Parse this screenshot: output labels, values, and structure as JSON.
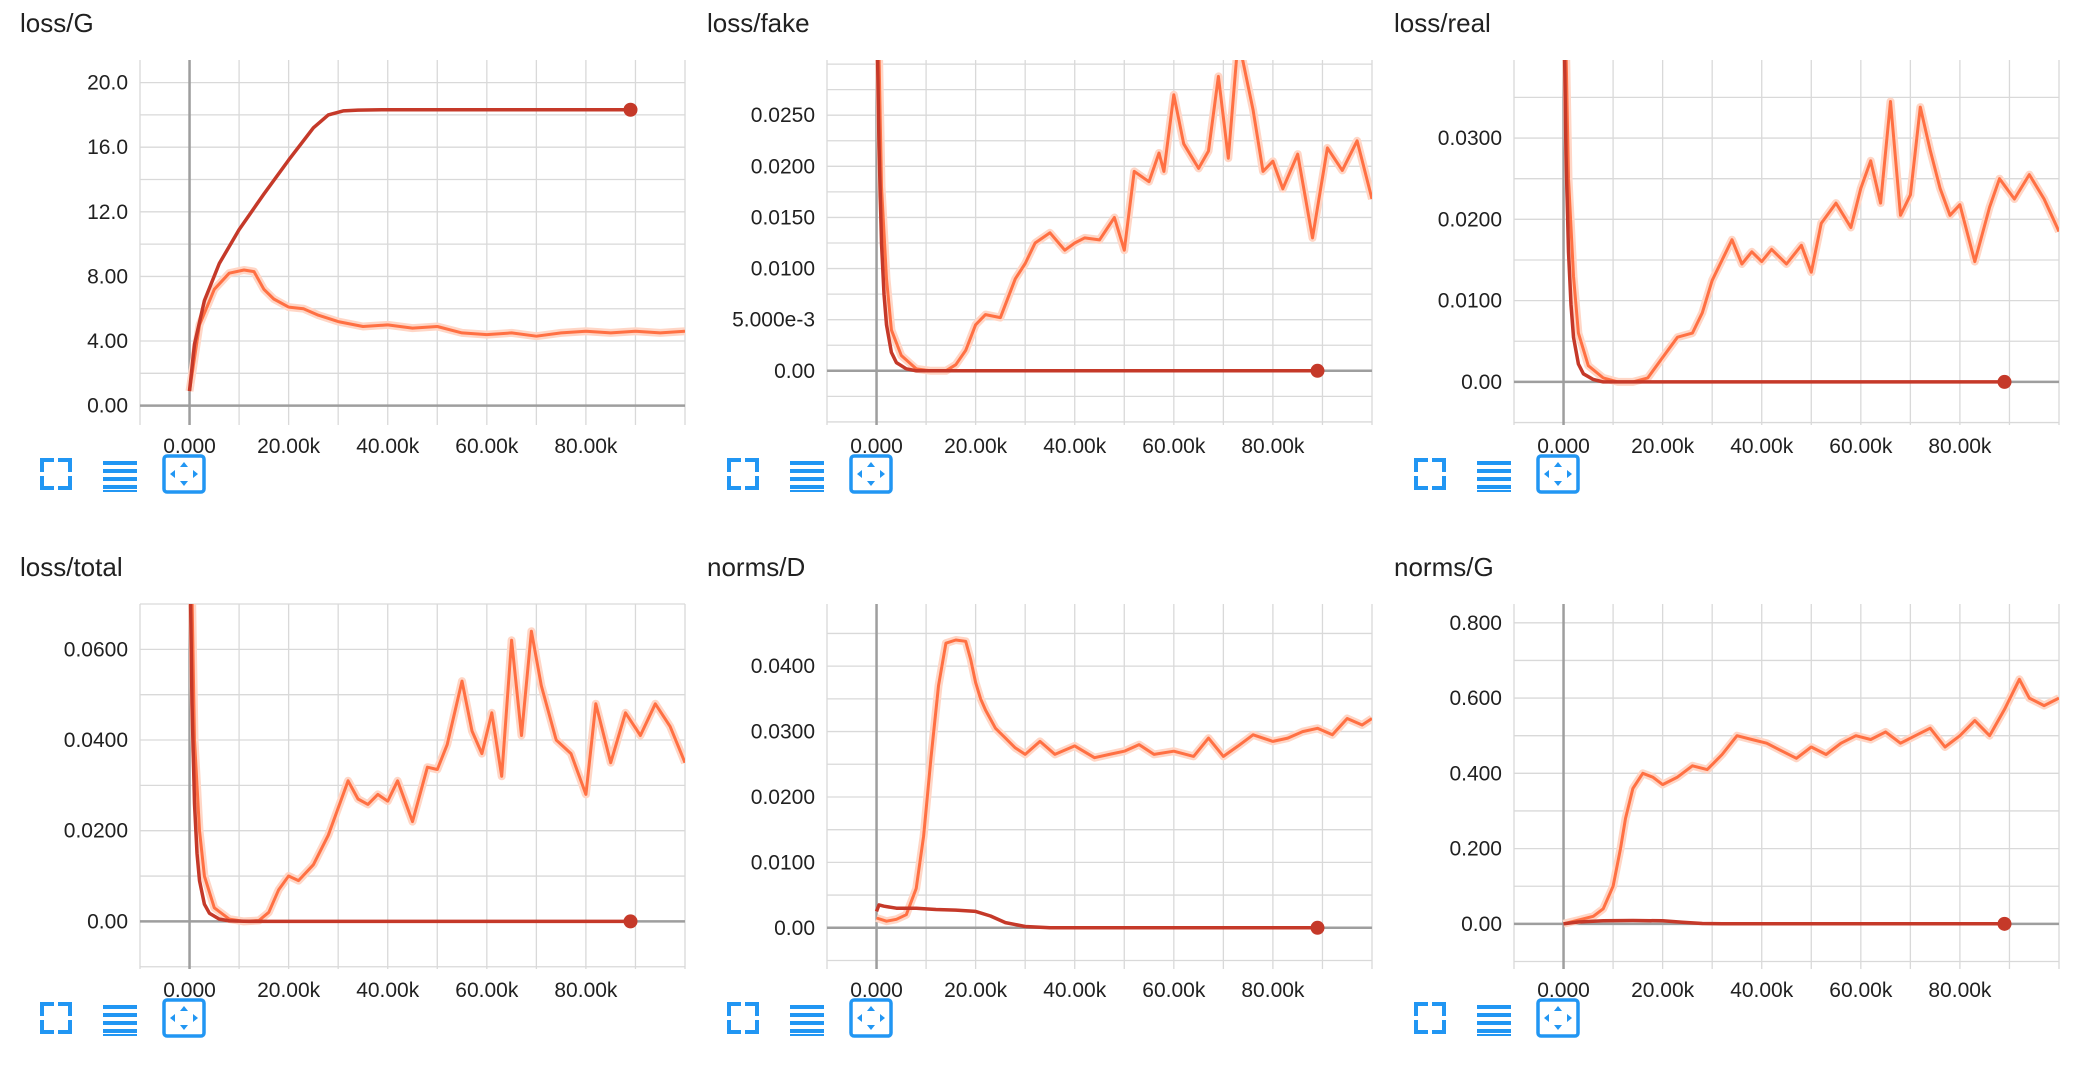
{
  "colors": {
    "raw": "#ff7043",
    "raw_faint": "#ffd6c6",
    "trend": "#c53929",
    "grid": "#d9d9d9",
    "axis": "#9e9e9e",
    "tick_text": "#212121",
    "button": "#2196f3"
  },
  "toolbar_buttons": [
    {
      "name": "fit-screen-icon",
      "icon": "expand-corners"
    },
    {
      "name": "list-icon",
      "icon": "horizontal-lines"
    },
    {
      "name": "fit-domain-icon",
      "icon": "arrows-in-box"
    }
  ],
  "chart_data": [
    {
      "title": "loss/G",
      "type": "line",
      "xlim": [
        -10000,
        100000
      ],
      "ylim": [
        -1.2,
        21.4
      ],
      "xticks": [
        0,
        20000,
        40000,
        60000,
        80000
      ],
      "xtick_labels": [
        "0.000",
        "20.00k",
        "40.00k",
        "60.00k",
        "80.00k"
      ],
      "yticks": [
        0,
        4,
        8,
        12,
        16,
        20
      ],
      "ytick_labels": [
        "0.00",
        "4.00",
        "8.00",
        "12.0",
        "16.0",
        "20.0"
      ],
      "grid": true,
      "series": [
        {
          "role": "raw",
          "x": [
            0,
            2000,
            5000,
            8000,
            11000,
            13000,
            15000,
            17000,
            20000,
            23000,
            26000,
            30000,
            35000,
            40000,
            45000,
            50000,
            55000,
            60000,
            65000,
            70000,
            75000,
            80000,
            85000,
            90000,
            95000,
            100000
          ],
          "y": [
            0.9,
            5.0,
            7.2,
            8.2,
            8.4,
            8.3,
            7.2,
            6.6,
            6.1,
            6.0,
            5.6,
            5.2,
            4.9,
            5.0,
            4.8,
            4.9,
            4.5,
            4.4,
            4.5,
            4.3,
            4.5,
            4.6,
            4.5,
            4.6,
            4.5,
            4.6
          ]
        },
        {
          "role": "trend",
          "end_marker": true,
          "x": [
            0,
            1000,
            3000,
            6000,
            10000,
            15000,
            20000,
            25000,
            28000,
            31000,
            34000,
            40000,
            60000,
            80000,
            89000
          ],
          "y": [
            0.9,
            3.8,
            6.5,
            8.8,
            10.9,
            13.1,
            15.2,
            17.2,
            18.0,
            18.25,
            18.3,
            18.32,
            18.32,
            18.32,
            18.32
          ]
        }
      ]
    },
    {
      "title": "loss/fake",
      "type": "line",
      "xlim": [
        -10000,
        100000
      ],
      "ylim": [
        -0.0053,
        0.0304
      ],
      "xticks": [
        0,
        20000,
        40000,
        60000,
        80000
      ],
      "xtick_labels": [
        "0.000",
        "20.00k",
        "40.00k",
        "60.00k",
        "80.00k"
      ],
      "yticks": [
        0,
        0.005,
        0.01,
        0.015,
        0.02,
        0.025
      ],
      "ytick_labels": [
        "0.00",
        "5.000e-3",
        "0.0100",
        "0.0150",
        "0.0200",
        "0.0250"
      ],
      "grid": true,
      "series": [
        {
          "role": "raw",
          "x": [
            500,
            1000,
            2000,
            3000,
            5000,
            8000,
            11000,
            14000,
            16000,
            18000,
            20000,
            22000,
            25000,
            28000,
            30000,
            32000,
            35000,
            38000,
            40000,
            42000,
            45000,
            48000,
            50000,
            52000,
            55000,
            57000,
            58000,
            60000,
            62000,
            65000,
            67000,
            69000,
            71000,
            73000,
            76000,
            78000,
            80000,
            82000,
            85000,
            88000,
            91000,
            94000,
            97000,
            100000
          ],
          "y": [
            0.031,
            0.018,
            0.009,
            0.004,
            0.0015,
            0.0002,
            0.0,
            0.0,
            0.0006,
            0.002,
            0.0045,
            0.0055,
            0.0052,
            0.009,
            0.0105,
            0.0125,
            0.0135,
            0.0118,
            0.0125,
            0.013,
            0.0128,
            0.015,
            0.0118,
            0.0195,
            0.0185,
            0.0213,
            0.0195,
            0.027,
            0.0222,
            0.0198,
            0.0215,
            0.0288,
            0.0208,
            0.0325,
            0.0255,
            0.0195,
            0.0205,
            0.0178,
            0.0212,
            0.013,
            0.0218,
            0.0196,
            0.0225,
            0.0168
          ]
        },
        {
          "role": "trend",
          "end_marker": true,
          "x": [
            200,
            500,
            1000,
            1500,
            2000,
            3000,
            4000,
            6000,
            8000,
            12000,
            20000,
            50000,
            89000
          ],
          "y": [
            0.031,
            0.022,
            0.0125,
            0.0075,
            0.0045,
            0.0018,
            0.0008,
            0.0002,
            0.0,
            0.0,
            0.0,
            0.0,
            0.0
          ]
        }
      ]
    },
    {
      "title": "loss/real",
      "type": "line",
      "xlim": [
        -10000,
        100000
      ],
      "ylim": [
        -0.0053,
        0.0396
      ],
      "xticks": [
        0,
        20000,
        40000,
        60000,
        80000
      ],
      "xtick_labels": [
        "0.000",
        "20.00k",
        "40.00k",
        "60.00k",
        "80.00k"
      ],
      "yticks": [
        0,
        0.01,
        0.02,
        0.03
      ],
      "ytick_labels": [
        "0.00",
        "0.0100",
        "0.0200",
        "0.0300"
      ],
      "grid": true,
      "series": [
        {
          "role": "raw",
          "x": [
            500,
            1000,
            2000,
            3000,
            5000,
            8000,
            11000,
            14000,
            17000,
            20000,
            23000,
            26000,
            28000,
            30000,
            32000,
            34000,
            36000,
            38000,
            40000,
            42000,
            45000,
            48000,
            50000,
            52000,
            55000,
            58000,
            60000,
            62000,
            64000,
            66000,
            68000,
            70000,
            72000,
            74000,
            76000,
            78000,
            80000,
            83000,
            86000,
            88000,
            91000,
            94000,
            97000,
            100000
          ],
          "y": [
            0.041,
            0.025,
            0.013,
            0.006,
            0.002,
            0.0005,
            0.0,
            0.0,
            0.0005,
            0.003,
            0.0055,
            0.006,
            0.0085,
            0.0125,
            0.015,
            0.0175,
            0.0145,
            0.016,
            0.0148,
            0.0163,
            0.0145,
            0.0168,
            0.0135,
            0.0195,
            0.022,
            0.019,
            0.0238,
            0.0272,
            0.022,
            0.0345,
            0.0205,
            0.023,
            0.0338,
            0.0285,
            0.0238,
            0.0205,
            0.0218,
            0.0148,
            0.0215,
            0.025,
            0.0225,
            0.0255,
            0.0225,
            0.0185
          ]
        },
        {
          "role": "trend",
          "end_marker": true,
          "x": [
            200,
            500,
            1000,
            1500,
            2000,
            3000,
            4000,
            6000,
            8000,
            12000,
            20000,
            50000,
            89000
          ],
          "y": [
            0.041,
            0.028,
            0.016,
            0.0095,
            0.0055,
            0.0022,
            0.001,
            0.0003,
            0.0,
            0.0,
            0.0,
            0.0,
            0.0
          ]
        }
      ]
    },
    {
      "title": "loss/total",
      "type": "line",
      "xlim": [
        -10000,
        100000
      ],
      "ylim": [
        -0.0105,
        0.07
      ],
      "xticks": [
        0,
        20000,
        40000,
        60000,
        80000
      ],
      "xtick_labels": [
        "0.000",
        "20.00k",
        "40.00k",
        "60.00k",
        "80.00k"
      ],
      "yticks": [
        0,
        0.02,
        0.04,
        0.06
      ],
      "ytick_labels": [
        "0.00",
        "0.0200",
        "0.0400",
        "0.0600"
      ],
      "grid": true,
      "series": [
        {
          "role": "raw",
          "x": [
            500,
            1000,
            2000,
            3000,
            5000,
            8000,
            11000,
            14000,
            16000,
            18000,
            20000,
            22000,
            25000,
            28000,
            30000,
            32000,
            34000,
            36000,
            38000,
            40000,
            42000,
            45000,
            48000,
            50000,
            52000,
            55000,
            57000,
            59000,
            61000,
            63000,
            65000,
            67000,
            69000,
            71000,
            74000,
            77000,
            80000,
            82000,
            85000,
            88000,
            91000,
            94000,
            97000,
            100000
          ],
          "y": [
            0.072,
            0.04,
            0.02,
            0.01,
            0.003,
            0.0005,
            0.0,
            0.0002,
            0.002,
            0.007,
            0.01,
            0.009,
            0.0125,
            0.019,
            0.025,
            0.031,
            0.027,
            0.0258,
            0.028,
            0.0265,
            0.031,
            0.022,
            0.034,
            0.0335,
            0.039,
            0.053,
            0.042,
            0.037,
            0.046,
            0.032,
            0.062,
            0.041,
            0.064,
            0.052,
            0.04,
            0.037,
            0.028,
            0.048,
            0.035,
            0.046,
            0.041,
            0.048,
            0.043,
            0.035
          ]
        },
        {
          "role": "trend",
          "end_marker": true,
          "x": [
            200,
            500,
            1000,
            1500,
            2000,
            3000,
            4000,
            6000,
            8000,
            12000,
            20000,
            50000,
            89000
          ],
          "y": [
            0.072,
            0.048,
            0.026,
            0.015,
            0.009,
            0.0038,
            0.0018,
            0.0005,
            0.0001,
            0.0,
            0.0,
            0.0,
            0.0
          ]
        }
      ]
    },
    {
      "title": "norms/D",
      "type": "line",
      "xlim": [
        -10000,
        100000
      ],
      "ylim": [
        -0.0063,
        0.0495
      ],
      "xticks": [
        0,
        20000,
        40000,
        60000,
        80000
      ],
      "xtick_labels": [
        "0.000",
        "20.00k",
        "40.00k",
        "60.00k",
        "80.00k"
      ],
      "yticks": [
        0,
        0.01,
        0.02,
        0.03,
        0.04
      ],
      "ytick_labels": [
        "0.00",
        "0.0100",
        "0.0200",
        "0.0300",
        "0.0400"
      ],
      "grid": true,
      "series": [
        {
          "role": "raw",
          "x": [
            0,
            2000,
            4000,
            6000,
            8000,
            9500,
            11000,
            12500,
            14000,
            16000,
            18000,
            19000,
            20000,
            21000,
            22000,
            24000,
            26000,
            28000,
            30000,
            33000,
            36000,
            40000,
            44000,
            47000,
            50000,
            53000,
            56000,
            60000,
            64000,
            67000,
            70000,
            73000,
            76000,
            80000,
            83000,
            86000,
            89000,
            92000,
            95000,
            98000,
            100000
          ],
          "y": [
            0.0015,
            0.001,
            0.0013,
            0.002,
            0.006,
            0.014,
            0.026,
            0.037,
            0.0435,
            0.044,
            0.0438,
            0.041,
            0.0375,
            0.035,
            0.0333,
            0.0305,
            0.029,
            0.0275,
            0.0265,
            0.0285,
            0.0265,
            0.0278,
            0.026,
            0.0265,
            0.027,
            0.028,
            0.0265,
            0.027,
            0.0262,
            0.029,
            0.0262,
            0.0278,
            0.0295,
            0.0285,
            0.029,
            0.03,
            0.0305,
            0.0295,
            0.032,
            0.031,
            0.032
          ]
        },
        {
          "role": "trend",
          "end_marker": true,
          "x": [
            0,
            500,
            1500,
            4000,
            8000,
            12000,
            16000,
            20000,
            23000,
            26000,
            30000,
            35000,
            45000,
            60000,
            89000
          ],
          "y": [
            0.0025,
            0.0035,
            0.0033,
            0.003,
            0.003,
            0.0028,
            0.0027,
            0.0025,
            0.0018,
            0.0008,
            0.0002,
            0.0,
            0.0,
            0.0,
            0.0
          ]
        }
      ]
    },
    {
      "title": "norms/G",
      "type": "line",
      "xlim": [
        -10000,
        100000
      ],
      "ylim": [
        -0.12,
        0.85
      ],
      "xticks": [
        0,
        20000,
        40000,
        60000,
        80000
      ],
      "xtick_labels": [
        "0.000",
        "20.00k",
        "40.00k",
        "60.00k",
        "80.00k"
      ],
      "yticks": [
        0,
        0.2,
        0.4,
        0.6,
        0.8
      ],
      "ytick_labels": [
        "0.00",
        "0.200",
        "0.400",
        "0.600",
        "0.800"
      ],
      "grid": true,
      "series": [
        {
          "role": "raw",
          "x": [
            0,
            3000,
            6000,
            8000,
            10000,
            11500,
            12500,
            14000,
            16000,
            18000,
            20000,
            23000,
            26000,
            29000,
            32000,
            35000,
            38000,
            41000,
            44000,
            47000,
            50000,
            53000,
            56000,
            59000,
            62000,
            65000,
            68000,
            71000,
            74000,
            77000,
            80000,
            83000,
            86000,
            89000,
            92000,
            94000,
            97000,
            100000
          ],
          "y": [
            0.0,
            0.01,
            0.02,
            0.04,
            0.1,
            0.2,
            0.28,
            0.36,
            0.4,
            0.39,
            0.37,
            0.39,
            0.42,
            0.41,
            0.45,
            0.5,
            0.49,
            0.48,
            0.46,
            0.44,
            0.47,
            0.45,
            0.48,
            0.5,
            0.49,
            0.51,
            0.48,
            0.5,
            0.52,
            0.47,
            0.5,
            0.54,
            0.5,
            0.57,
            0.65,
            0.6,
            0.58,
            0.6
          ]
        },
        {
          "role": "trend",
          "end_marker": true,
          "x": [
            0,
            3000,
            8000,
            14000,
            20000,
            24000,
            28000,
            32000,
            40000,
            60000,
            89000
          ],
          "y": [
            0.0,
            0.005,
            0.008,
            0.009,
            0.008,
            0.004,
            0.001,
            0.0,
            0.0,
            0.0,
            0.0
          ]
        }
      ]
    }
  ]
}
